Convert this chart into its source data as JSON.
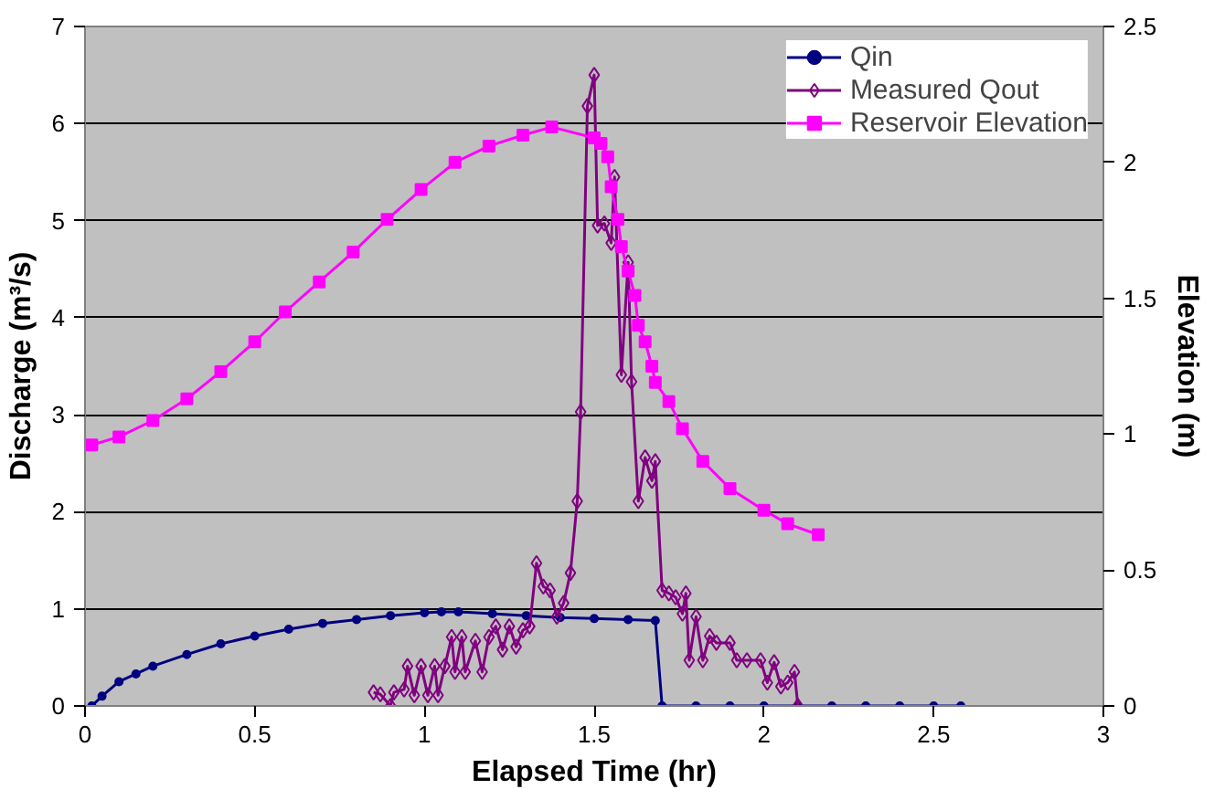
{
  "chart_data": {
    "type": "line",
    "xlabel": "Elapsed Time (hr)",
    "ylabel": "Discharge (m³/s)",
    "y2label": "Elevation (m)",
    "xlim": [
      0,
      3
    ],
    "xticks": [
      0,
      0.5,
      1,
      1.5,
      2,
      2.5,
      3
    ],
    "ylim": [
      0,
      7
    ],
    "yticks": [
      0,
      1,
      2,
      3,
      4,
      5,
      6,
      7
    ],
    "y2lim": [
      0,
      2.5
    ],
    "y2ticks": [
      0,
      0.5,
      1,
      1.5,
      2,
      2.5
    ],
    "grid": "y",
    "legend": "top right",
    "series": [
      {
        "name": "Qin",
        "color": "#000080",
        "marker": "circle",
        "x": [
          0.02,
          0.05,
          0.1,
          0.15,
          0.2,
          0.3,
          0.4,
          0.5,
          0.6,
          0.7,
          0.8,
          0.9,
          1.0,
          1.05,
          1.1,
          1.2,
          1.3,
          1.4,
          1.5,
          1.6,
          1.68,
          1.7,
          1.8,
          1.9,
          2.0,
          2.1,
          2.2,
          2.3,
          2.4,
          2.5,
          2.58
        ],
        "values": [
          0,
          0.1,
          0.25,
          0.33,
          0.41,
          0.53,
          0.64,
          0.72,
          0.79,
          0.85,
          0.89,
          0.93,
          0.96,
          0.97,
          0.97,
          0.95,
          0.93,
          0.91,
          0.9,
          0.89,
          0.88,
          0,
          0,
          0,
          0,
          0,
          0,
          0,
          0,
          0,
          0
        ]
      },
      {
        "name": "Measured Qout",
        "color": "#800080",
        "marker": "diamond",
        "x": [
          0.85,
          0.87,
          0.9,
          0.91,
          0.94,
          0.95,
          0.97,
          0.99,
          1.01,
          1.03,
          1.04,
          1.06,
          1.08,
          1.09,
          1.11,
          1.12,
          1.15,
          1.17,
          1.19,
          1.21,
          1.23,
          1.25,
          1.27,
          1.29,
          1.31,
          1.33,
          1.35,
          1.37,
          1.39,
          1.41,
          1.43,
          1.45,
          1.46,
          1.48,
          1.5,
          1.51,
          1.53,
          1.55,
          1.56,
          1.58,
          1.6,
          1.61,
          1.63,
          1.65,
          1.67,
          1.68,
          1.7,
          1.72,
          1.74,
          1.76,
          1.77,
          1.78,
          1.8,
          1.82,
          1.84,
          1.86,
          1.9,
          1.92,
          1.95,
          1.99,
          2.01,
          2.03,
          2.05,
          2.07,
          2.09,
          2.1
        ],
        "values": [
          0.14,
          0.12,
          0.0,
          0.14,
          0.17,
          0.41,
          0.11,
          0.41,
          0.11,
          0.41,
          0.11,
          0.41,
          0.71,
          0.35,
          0.71,
          0.35,
          0.67,
          0.35,
          0.71,
          0.82,
          0.58,
          0.82,
          0.61,
          0.78,
          0.82,
          1.47,
          1.23,
          1.19,
          0.92,
          1.06,
          1.37,
          2.11,
          3.03,
          6.18,
          6.5,
          4.95,
          4.97,
          4.77,
          5.45,
          3.41,
          4.57,
          3.34,
          2.11,
          2.56,
          2.32,
          2.52,
          1.19,
          1.16,
          1.12,
          0.95,
          1.16,
          0.47,
          0.92,
          0.47,
          0.72,
          0.65,
          0.65,
          0.47,
          0.47,
          0.47,
          0.24,
          0.45,
          0.2,
          0.24,
          0.35,
          0
        ]
      },
      {
        "name": "Reservoir Elevation",
        "color": "#ff00ff",
        "marker": "square",
        "axis": "y2",
        "x": [
          0.02,
          0.1,
          0.2,
          0.3,
          0.4,
          0.5,
          0.59,
          0.69,
          0.79,
          0.89,
          0.99,
          1.09,
          1.19,
          1.29,
          1.375,
          1.5,
          1.52,
          1.54,
          1.55,
          1.57,
          1.58,
          1.6,
          1.62,
          1.63,
          1.65,
          1.67,
          1.68,
          1.72,
          1.76,
          1.82,
          1.9,
          2.0,
          2.07,
          2.16
        ],
        "values": [
          0.96,
          0.99,
          1.05,
          1.13,
          1.23,
          1.34,
          1.45,
          1.56,
          1.67,
          1.79,
          1.9,
          2.0,
          2.06,
          2.1,
          2.13,
          2.09,
          2.07,
          2.02,
          1.91,
          1.79,
          1.69,
          1.6,
          1.51,
          1.4,
          1.34,
          1.25,
          1.19,
          1.12,
          1.02,
          0.9,
          0.8,
          0.72,
          0.67,
          0.63
        ]
      }
    ]
  }
}
